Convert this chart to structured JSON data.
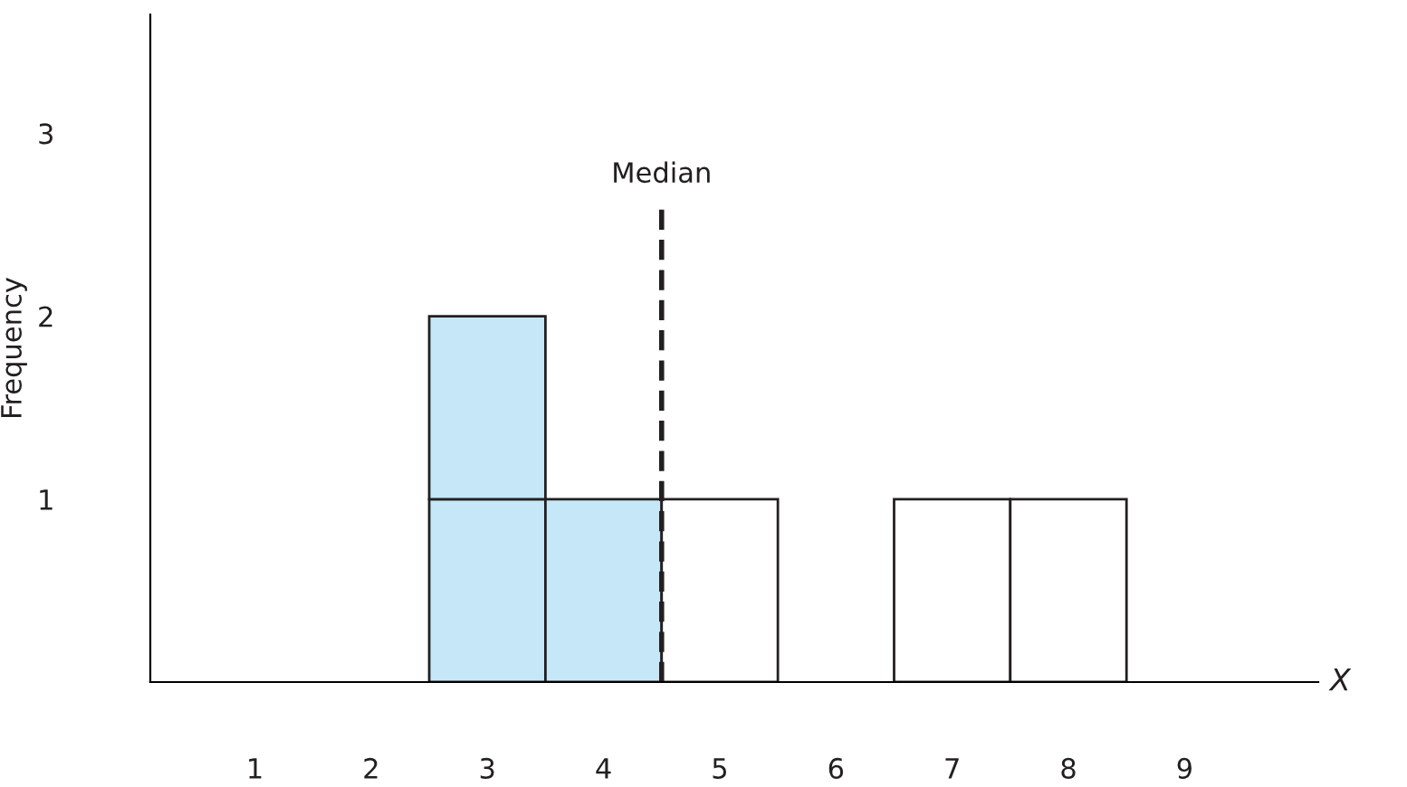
{
  "chart_data": {
    "type": "bar",
    "stacked": true,
    "x": [
      3,
      4,
      5,
      7,
      8
    ],
    "series": [
      {
        "values": [
          1,
          1,
          1,
          1,
          1
        ],
        "colors": [
          "#c6e7f8",
          "#c6e7f8",
          "#ffffff",
          "#ffffff",
          "#ffffff"
        ]
      },
      {
        "values": [
          1,
          null,
          null,
          null,
          null
        ],
        "colors": [
          "#c6e7f8",
          null,
          null,
          null,
          null
        ]
      }
    ],
    "xlabel": "X",
    "ylabel": "Frequency",
    "xlim": [
      0.1,
      10.15
    ],
    "xticks": [
      1,
      2,
      3,
      4,
      5,
      6,
      7,
      8,
      9
    ],
    "ylim": [
      0,
      3.65
    ],
    "yticks": [
      1,
      2,
      3
    ],
    "ref_lines": [
      {
        "axis": "x",
        "value": 4.5,
        "label": "Median",
        "color": "#231f20",
        "line_style": "dashed"
      }
    ],
    "grid": false,
    "legend": false
  }
}
